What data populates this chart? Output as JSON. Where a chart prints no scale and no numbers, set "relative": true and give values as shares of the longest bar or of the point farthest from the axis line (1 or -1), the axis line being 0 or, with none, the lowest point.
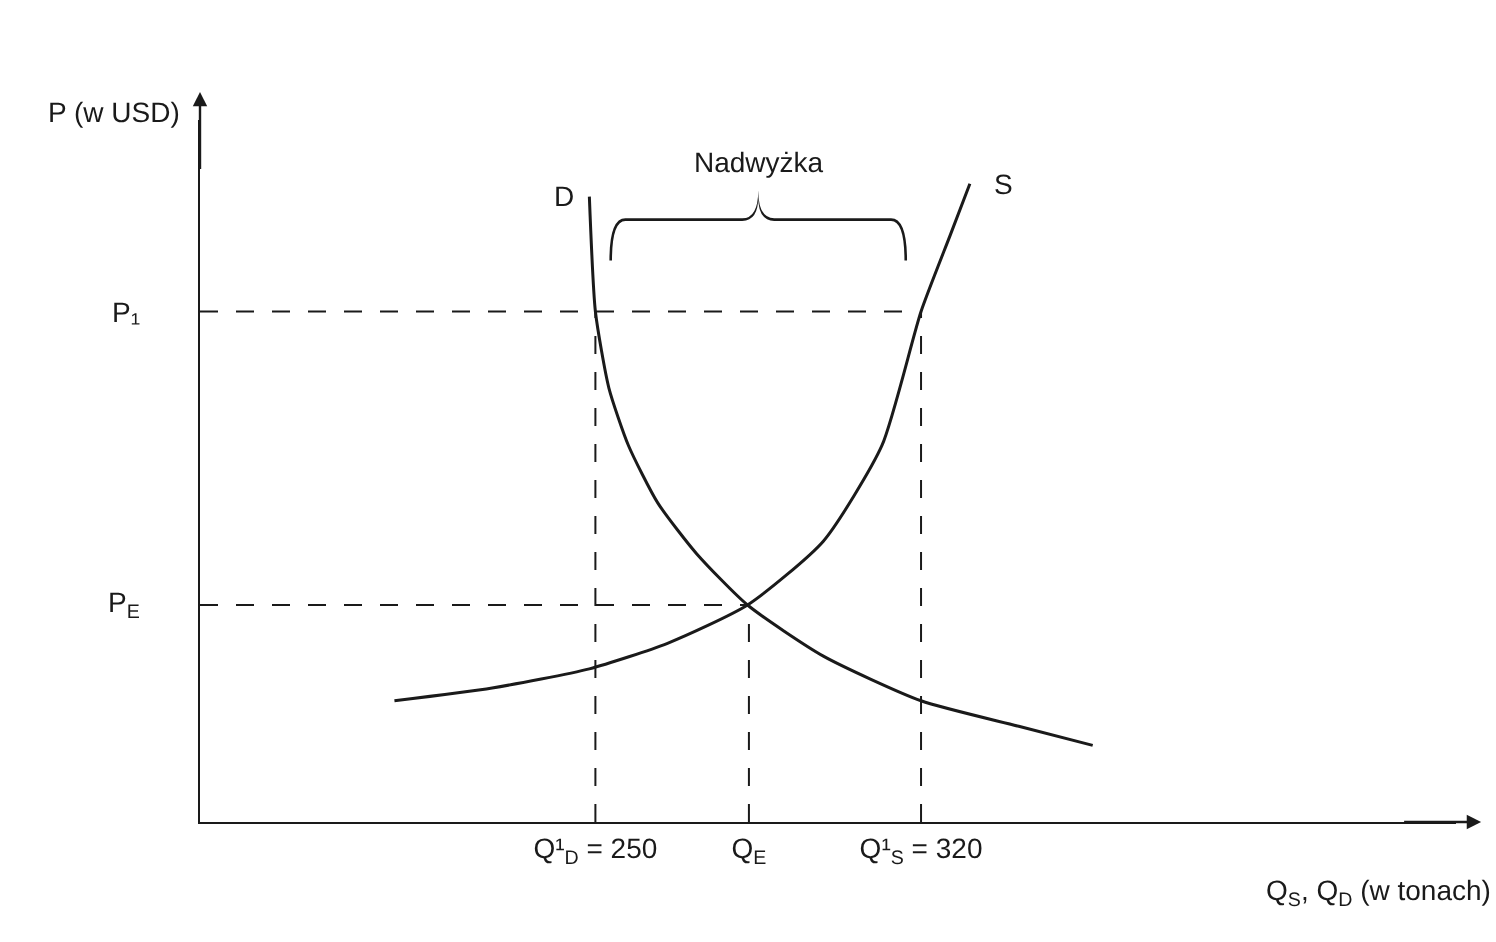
{
  "chart_data": {
    "type": "line",
    "relative": true,
    "ylabel": "P (w USD)",
    "xlabel": "Q$_{S}$, Q$_{D}$ (w tonach)",
    "xlim": [
      165,
      435
    ],
    "xticks": [
      {
        "value": 250,
        "label": "Q¹$_{D}$ = 250"
      },
      {
        "value": 283,
        "label": "Q$_{E}$"
      },
      {
        "value": 320,
        "label": "Q¹$_{S}$ = 320"
      }
    ],
    "series": [
      {
        "name": "D",
        "color": "#1a1a1a",
        "x": [
          248.7,
          250,
          252.9,
          257.1,
          263.4,
          271.8,
          282.7,
          299,
          320,
          341,
          356.9
        ],
        "values": [
          0.98,
          0.8,
          0.68,
          0.59,
          0.5,
          0.42,
          0.34,
          0.26,
          0.19,
          0.15,
          0.12
        ]
      },
      {
        "name": "S",
        "color": "#1a1a1a",
        "x": [
          206.8,
          227.8,
          248.7,
          265.5,
          282.7,
          299,
          311.6,
          320,
          326.3,
          330.5
        ],
        "values": [
          0.19,
          0.21,
          0.24,
          0.28,
          0.34,
          0.44,
          0.59,
          0.8,
          0.92,
          1
        ]
      }
    ],
    "ref_lines": [
      {
        "axis": "y",
        "value": 0.8,
        "label": "P₁",
        "line_style": "dashed"
      },
      {
        "axis": "y",
        "value": 0.34,
        "label": "P$_{E}$",
        "line_style": "dashed"
      },
      {
        "axis": "x",
        "value": 250,
        "line_style": "dashed"
      },
      {
        "axis": "x",
        "value": 283,
        "line_style": "dashed"
      },
      {
        "axis": "x",
        "value": 320,
        "line_style": "dashed"
      }
    ],
    "annotations": [
      "Nadwyżka"
    ],
    "grid": false,
    "legend": false,
    "marker": "none",
    "line_style": "solid"
  }
}
